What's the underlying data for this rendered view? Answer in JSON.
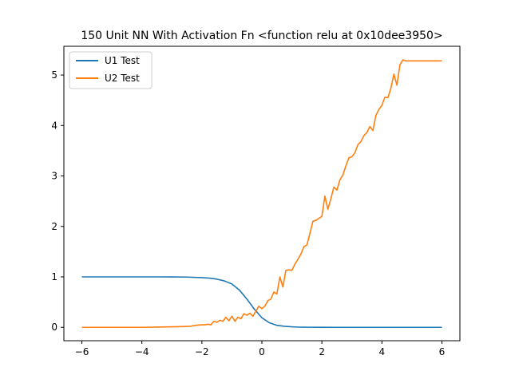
{
  "chart_data": {
    "type": "line",
    "title": "150 Unit NN With Activation Fn <function relu at 0x10dee3950>",
    "xlabel": "",
    "ylabel": "",
    "xlim": [
      -6.6,
      6.6
    ],
    "ylim": [
      -0.265,
      5.57
    ],
    "x_ticks": [
      -6,
      -4,
      -2,
      0,
      2,
      4,
      6
    ],
    "x_tick_labels": [
      "−6",
      "−4",
      "−2",
      "0",
      "2",
      "4",
      "6"
    ],
    "y_ticks": [
      0,
      1,
      2,
      3,
      4,
      5
    ],
    "y_tick_labels": [
      "0",
      "1",
      "2",
      "3",
      "4",
      "5"
    ],
    "grid": false,
    "legend_position": "upper-left",
    "series": [
      {
        "name": "U1 Test",
        "color": "#1f77b4",
        "x": [
          -6,
          -5.5,
          -5,
          -4.5,
          -4,
          -3.5,
          -3,
          -2.5,
          -2,
          -1.75,
          -1.5,
          -1.25,
          -1,
          -0.75,
          -0.5,
          -0.25,
          0,
          0.25,
          0.5,
          0.75,
          1,
          1.25,
          1.5,
          2,
          2.5,
          3,
          3.5,
          4,
          4.5,
          5,
          5.5,
          6
        ],
        "values": [
          1,
          1,
          1,
          1,
          1,
          1,
          0.999,
          0.996,
          0.985,
          0.975,
          0.955,
          0.92,
          0.86,
          0.74,
          0.56,
          0.36,
          0.19,
          0.09,
          0.04,
          0.02,
          0.01,
          0.004,
          0.002,
          0.001,
          0,
          0,
          0,
          0,
          0,
          0,
          0,
          0
        ]
      },
      {
        "name": "U2 Test",
        "color": "#ff7f0e",
        "x": [
          -6,
          -5,
          -4,
          -3.5,
          -3,
          -2.7,
          -2.4,
          -2.2,
          -2.0,
          -1.9,
          -1.8,
          -1.7,
          -1.6,
          -1.5,
          -1.4,
          -1.3,
          -1.2,
          -1.1,
          -1.0,
          -0.9,
          -0.8,
          -0.7,
          -0.6,
          -0.5,
          -0.4,
          -0.3,
          -0.2,
          -0.1,
          0.0,
          0.1,
          0.2,
          0.3,
          0.4,
          0.5,
          0.6,
          0.7,
          0.8,
          0.9,
          1.0,
          1.1,
          1.2,
          1.3,
          1.4,
          1.5,
          1.6,
          1.7,
          1.8,
          1.9,
          2.0,
          2.1,
          2.2,
          2.3,
          2.4,
          2.5,
          2.6,
          2.7,
          2.8,
          2.9,
          3.0,
          3.1,
          3.2,
          3.3,
          3.4,
          3.5,
          3.6,
          3.7,
          3.8,
          3.9,
          4.0,
          4.1,
          4.2,
          4.3,
          4.4,
          4.5,
          4.6,
          4.7,
          4.8,
          4.9,
          5.0,
          5.1,
          5.2,
          5.3,
          5.4,
          5.5,
          5.6,
          5.7,
          5.8,
          5.9,
          6.0
        ],
        "values": [
          0,
          0,
          0,
          0.005,
          0.01,
          0.015,
          0.02,
          0.04,
          0.05,
          0.05,
          0.06,
          0.05,
          0.12,
          0.1,
          0.14,
          0.12,
          0.2,
          0.13,
          0.22,
          0.12,
          0.2,
          0.17,
          0.27,
          0.24,
          0.28,
          0.22,
          0.32,
          0.42,
          0.37,
          0.42,
          0.53,
          0.56,
          0.7,
          0.66,
          1.0,
          0.8,
          1.13,
          1.14,
          1.13,
          1.25,
          1.35,
          1.45,
          1.6,
          1.63,
          1.86,
          2.1,
          2.12,
          2.16,
          2.2,
          2.6,
          2.34,
          2.55,
          2.78,
          2.72,
          2.92,
          3.02,
          3.2,
          3.36,
          3.38,
          3.46,
          3.62,
          3.68,
          3.8,
          3.86,
          3.98,
          3.9,
          4.2,
          4.32,
          4.4,
          4.56,
          4.55,
          4.74,
          5.02,
          4.8,
          5.2,
          5.3,
          5.28,
          5.28,
          5.28,
          5.28,
          5.28,
          5.28,
          5.28,
          5.28,
          5.28,
          5.28,
          5.28,
          5.28,
          5.28
        ]
      }
    ]
  }
}
